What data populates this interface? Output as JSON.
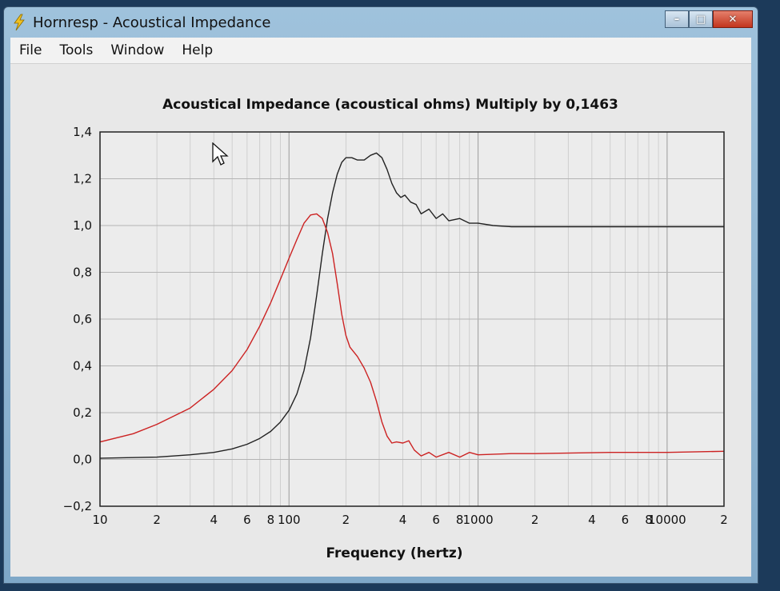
{
  "window": {
    "title": "Hornresp - Acoustical Impedance",
    "controls": {
      "minimize": "–",
      "maximize": "□",
      "close": "✕"
    },
    "app_icon": "lightning-bolt-icon"
  },
  "menu": {
    "items": [
      "File",
      "Tools",
      "Window",
      "Help"
    ]
  },
  "chart_data": {
    "type": "line",
    "title": "Acoustical Impedance (acoustical ohms)   Multiply by 0,1463",
    "xlabel": "Frequency (hertz)",
    "ylabel": "",
    "x_scale": "log",
    "xlim": [
      10,
      20000
    ],
    "ylim": [
      -0.2,
      1.4
    ],
    "grid": true,
    "y_ticks": [
      "1,4",
      "1,2",
      "1,0",
      "0,8",
      "0,6",
      "0,4",
      "0,2",
      "0,0",
      "−0,2"
    ],
    "y_tick_values": [
      1.4,
      1.2,
      1.0,
      0.8,
      0.6,
      0.4,
      0.2,
      0.0,
      -0.2
    ],
    "x_ticks": [
      "10",
      "2",
      "4",
      "6",
      "8",
      "100",
      "2",
      "4",
      "6",
      "8",
      "1000",
      "2",
      "4",
      "6",
      "8",
      "10000",
      "2"
    ],
    "x_tick_values": [
      10,
      20,
      40,
      60,
      80,
      100,
      200,
      400,
      600,
      800,
      1000,
      2000,
      4000,
      6000,
      8000,
      10000,
      20000
    ],
    "series": [
      {
        "color": "#222222",
        "x": [
          10,
          20,
          30,
          40,
          50,
          60,
          70,
          80,
          90,
          100,
          110,
          120,
          130,
          140,
          150,
          160,
          170,
          180,
          190,
          200,
          215,
          230,
          250,
          270,
          290,
          310,
          330,
          350,
          370,
          390,
          410,
          440,
          470,
          500,
          550,
          600,
          650,
          700,
          800,
          900,
          1000,
          1200,
          1500,
          2000,
          3000,
          5000,
          10000,
          20000
        ],
        "y": [
          0.005,
          0.01,
          0.02,
          0.03,
          0.045,
          0.065,
          0.09,
          0.12,
          0.16,
          0.21,
          0.28,
          0.38,
          0.52,
          0.7,
          0.88,
          1.03,
          1.14,
          1.22,
          1.27,
          1.29,
          1.29,
          1.28,
          1.28,
          1.3,
          1.31,
          1.29,
          1.24,
          1.18,
          1.14,
          1.12,
          1.13,
          1.1,
          1.09,
          1.05,
          1.07,
          1.03,
          1.05,
          1.02,
          1.03,
          1.01,
          1.01,
          1.0,
          0.995,
          0.995,
          0.995,
          0.995,
          0.995,
          0.995
        ]
      },
      {
        "color": "#cc2222",
        "x": [
          10,
          15,
          20,
          30,
          40,
          50,
          60,
          70,
          80,
          90,
          100,
          110,
          120,
          130,
          140,
          150,
          160,
          170,
          180,
          190,
          200,
          210,
          230,
          250,
          270,
          290,
          310,
          330,
          350,
          370,
          400,
          430,
          460,
          500,
          550,
          600,
          700,
          800,
          900,
          1000,
          1500,
          2000,
          5000,
          10000,
          20000
        ],
        "y": [
          0.075,
          0.11,
          0.15,
          0.22,
          0.3,
          0.38,
          0.47,
          0.57,
          0.67,
          0.77,
          0.86,
          0.94,
          1.01,
          1.045,
          1.05,
          1.03,
          0.97,
          0.88,
          0.75,
          0.62,
          0.53,
          0.48,
          0.44,
          0.39,
          0.33,
          0.25,
          0.16,
          0.1,
          0.07,
          0.075,
          0.07,
          0.08,
          0.04,
          0.015,
          0.03,
          0.01,
          0.03,
          0.01,
          0.03,
          0.02,
          0.025,
          0.025,
          0.03,
          0.03,
          0.035
        ]
      }
    ]
  }
}
